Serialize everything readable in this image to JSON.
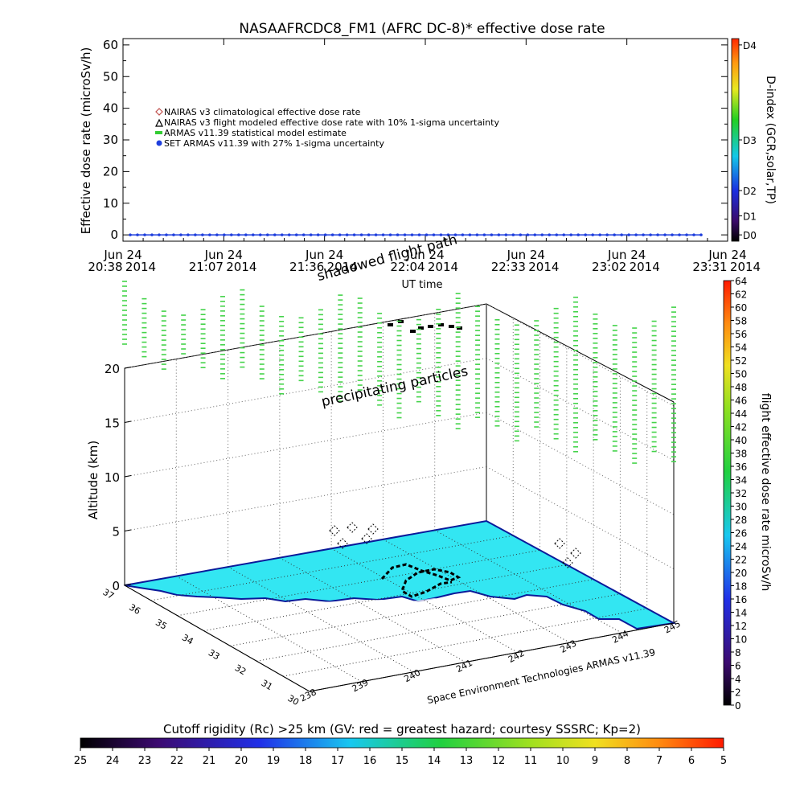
{
  "chart_data": [
    {
      "type": "line",
      "title": "NASAAFRCDC8_FM1 (AFRC DC-8)* effective dose rate",
      "ylabel": "Effective dose rate (microSv/h)",
      "xlabel": "UT time",
      "ylim": [
        0,
        60
      ],
      "yticks": [
        "0",
        "10",
        "20",
        "30",
        "40",
        "50",
        "60"
      ],
      "xticks": [
        {
          "date": "Jun 24",
          "time": "20:38",
          "year": "2014"
        },
        {
          "date": "Jun 24",
          "time": "21:07",
          "year": "2014"
        },
        {
          "date": "Jun 24",
          "time": "21:36",
          "year": "2014"
        },
        {
          "date": "Jun 24",
          "time": "22:04",
          "year": "2014"
        },
        {
          "date": "Jun 24",
          "time": "22:33",
          "year": "2014"
        },
        {
          "date": "Jun 24",
          "time": "23:02",
          "year": "2014"
        },
        {
          "date": "Jun 24",
          "time": "23:31",
          "year": "2014"
        }
      ],
      "legend": [
        {
          "label": "NAIRAS v3 climatological effective dose rate",
          "color": "#c0504d",
          "marker": "diamond"
        },
        {
          "label": "NAIRAS v3 flight modeled effective dose rate with 10% 1-sigma uncertainty",
          "color": "#000000",
          "marker": "triangle"
        },
        {
          "label": "ARMAS v11.39 statistical model estimate",
          "color": "#33cc33",
          "marker": "dash"
        },
        {
          "label": "SET ARMAS v11.39 with 27% 1-sigma uncertainty",
          "color": "#1f3fdd",
          "marker": "dot"
        }
      ],
      "series": [
        {
          "name": "SET ARMAS v11.39 with 27% 1-sigma uncertainty",
          "color": "#1f3fdd",
          "values": [
            0,
            0,
            0,
            0,
            0,
            0,
            0,
            0,
            0,
            0,
            0,
            0,
            0,
            0,
            0,
            0,
            0,
            0,
            0,
            0,
            0,
            0,
            0,
            0,
            0,
            0,
            0,
            0,
            0,
            0,
            0,
            0,
            0,
            0,
            0,
            0,
            0,
            0,
            0,
            0,
            0,
            0,
            0,
            0,
            0,
            0,
            0,
            0,
            0,
            0,
            0,
            0,
            0,
            0,
            0,
            0,
            0,
            0,
            0,
            0,
            0,
            0,
            0,
            0,
            0,
            0,
            0,
            0,
            0,
            0,
            0,
            0,
            0,
            0,
            0,
            0,
            0,
            0,
            0,
            0
          ]
        }
      ],
      "dindex": {
        "label": "D-index (GCR,solar,TP)",
        "ticks": [
          {
            "label": "D0",
            "value": 0
          },
          {
            "label": "D1",
            "value": 6
          },
          {
            "label": "D2",
            "value": 14
          },
          {
            "label": "D3",
            "value": 30
          },
          {
            "label": "D4",
            "value": 60
          }
        ]
      }
    },
    {
      "type": "3d-scatter",
      "zlabel": "Altitude (km)",
      "zticks": [
        "0",
        "5",
        "10",
        "15",
        "20"
      ],
      "lat_ticks": [
        "30",
        "31",
        "32",
        "33",
        "34",
        "35",
        "36",
        "37"
      ],
      "lon_ticks": [
        "238",
        "239",
        "240",
        "241",
        "242",
        "243",
        "244",
        "245"
      ],
      "annotations": [
        "shadowed flight path",
        "precipitating particles"
      ],
      "credit": "Space Environment Technologies ARMAS v11.39",
      "colorbar_right": {
        "label": "flight effective dose rate microSv/h",
        "ticks": [
          "0",
          "2",
          "4",
          "6",
          "8",
          "10",
          "12",
          "14",
          "16",
          "18",
          "20",
          "22",
          "24",
          "26",
          "28",
          "30",
          "32",
          "34",
          "36",
          "38",
          "40",
          "42",
          "44",
          "46",
          "48",
          "50",
          "52",
          "54",
          "56",
          "58",
          "60",
          "62",
          "64"
        ]
      },
      "colorbar_bottom": {
        "label": "Cutoff rigidity (Rc) >25 km (GV: red = greatest hazard; courtesy SSSRC; Kp=2)",
        "ticks": [
          "25",
          "24",
          "23",
          "22",
          "21",
          "20",
          "19",
          "18",
          "17",
          "16",
          "15",
          "14",
          "13",
          "12",
          "11",
          "10",
          "9",
          "8",
          "7",
          "6",
          "5"
        ]
      }
    }
  ]
}
